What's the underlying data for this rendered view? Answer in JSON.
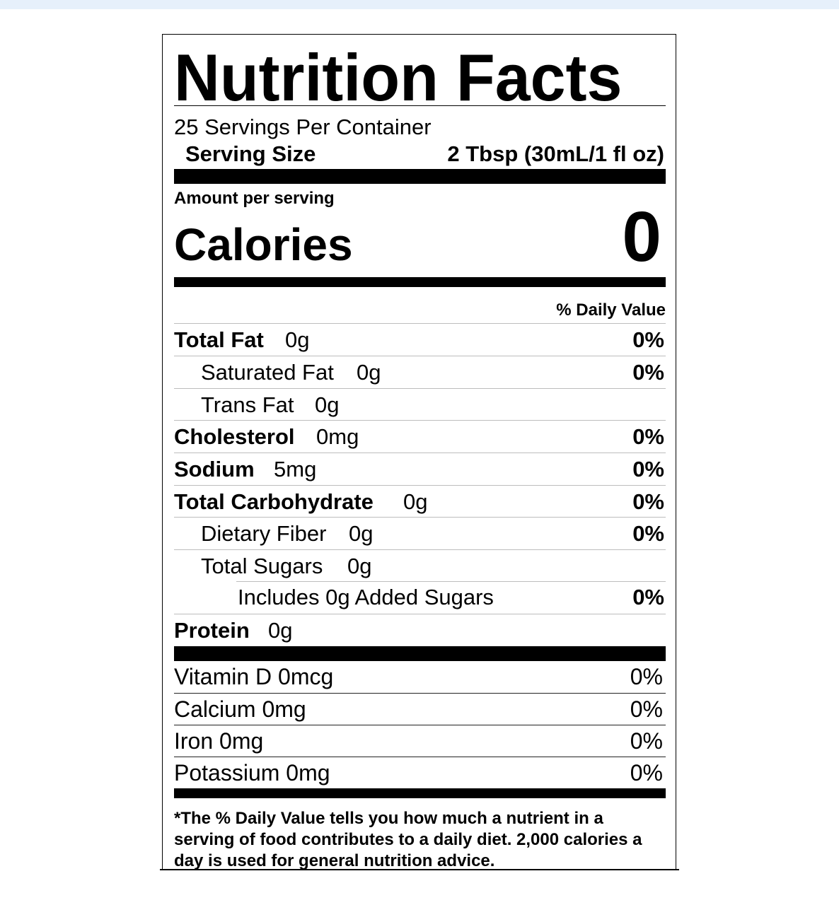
{
  "label": {
    "title": "Nutrition Facts",
    "servings_per_container": "25 Servings Per Container",
    "serving_size_label": "Serving Size",
    "serving_size_value": "2 Tbsp (30mL/1 fl oz)",
    "amount_per_serving": "Amount per serving",
    "calories_label": "Calories",
    "calories_value": "0",
    "daily_value_header": "% Daily Value",
    "nutrients": [
      {
        "name": "Total Fat",
        "amount": "0g",
        "dv": "0%"
      },
      {
        "name": "Saturated Fat",
        "amount": "0g",
        "dv": "0%"
      },
      {
        "name": "Trans Fat",
        "amount": "0g",
        "dv": ""
      },
      {
        "name": "Cholesterol",
        "amount": "0mg",
        "dv": "0%"
      },
      {
        "name": "Sodium",
        "amount": "5mg",
        "dv": "0%"
      },
      {
        "name": "Total Carbohydrate",
        "amount": "0g",
        "dv": "0%"
      },
      {
        "name": "Dietary Fiber",
        "amount": "0g",
        "dv": "0%"
      },
      {
        "name": "Total Sugars",
        "amount": "0g",
        "dv": ""
      },
      {
        "name": "Includes 0g Added Sugars",
        "amount": "",
        "dv": "0%"
      },
      {
        "name": "Protein",
        "amount": "0g",
        "dv": ""
      }
    ],
    "vitamins": [
      {
        "name": "Vitamin D 0mcg",
        "dv": "0%"
      },
      {
        "name": "Calcium 0mg",
        "dv": "0%"
      },
      {
        "name": "Iron 0mg",
        "dv": "0%"
      },
      {
        "name": "Potassium 0mg",
        "dv": "0%"
      }
    ],
    "footnote": "*The % Daily Value tells you how much a nutrient in a serving of food contributes to a daily diet.  2,000 calories a day is used for general nutrition advice."
  }
}
